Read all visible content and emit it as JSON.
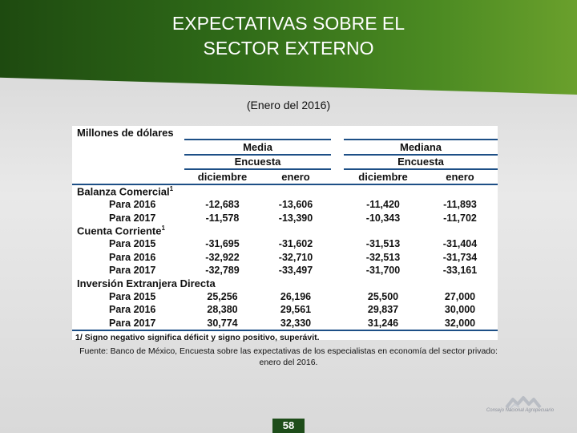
{
  "title": {
    "line1": "EXPECTATIVAS SOBRE EL",
    "line2": "SECTOR EXTERNO"
  },
  "subtitle": "(Enero del 2016)",
  "table": {
    "unit_label": "Millones de dólares",
    "group_media": "Media",
    "group_mediana": "Mediana",
    "encuesta_label": "Encuesta",
    "col_dic": "diciembre",
    "col_ene": "enero",
    "sections": [
      {
        "name": "Balanza Comercial",
        "sup": "1",
        "rows": [
          {
            "label": "Para 2016",
            "values": [
              "-12,683",
              "-13,606",
              "-11,420",
              "-11,893"
            ]
          },
          {
            "label": "Para 2017",
            "values": [
              "-11,578",
              "-13,390",
              "-10,343",
              "-11,702"
            ]
          }
        ]
      },
      {
        "name": "Cuenta Corriente",
        "sup": "1",
        "rows": [
          {
            "label": "Para 2015",
            "values": [
              "-31,695",
              "-31,602",
              "-31,513",
              "-31,404"
            ]
          },
          {
            "label": "Para 2016",
            "values": [
              "-32,922",
              "-32,710",
              "-32,513",
              "-31,734"
            ]
          },
          {
            "label": "Para 2017",
            "values": [
              "-32,789",
              "-33,497",
              "-31,700",
              "-33,161"
            ]
          }
        ]
      },
      {
        "name": "Inversión Extranjera Directa",
        "sup": "",
        "rows": [
          {
            "label": "Para 2015",
            "values": [
              "25,256",
              "26,196",
              "25,500",
              "27,000"
            ]
          },
          {
            "label": "Para 2016",
            "values": [
              "28,380",
              "29,561",
              "29,837",
              "30,000"
            ]
          },
          {
            "label": "Para 2017",
            "values": [
              "30,774",
              "32,330",
              "31,246",
              "32,000"
            ]
          }
        ]
      }
    ],
    "note": "1/ Signo negativo significa déficit y signo positivo, superávit."
  },
  "source": "Fuente: Banco de México, Encuesta sobre las expectativas de los especialistas en economía del sector privado: enero del 2016.",
  "page_number": "58",
  "logo_text": "Consejo Nacional Agropecuario",
  "colors": {
    "banner": "#2f6a18",
    "rule": "#1d4f86",
    "page_box": "#1e4d1a"
  }
}
